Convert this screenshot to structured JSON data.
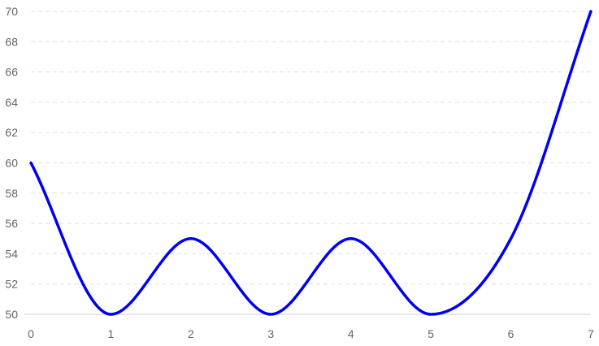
{
  "chart_data": {
    "type": "line",
    "x": [
      0,
      1,
      2,
      3,
      4,
      5,
      6,
      7
    ],
    "series": [
      {
        "values": [
          60,
          50,
          55,
          50,
          55,
          50,
          55,
          70
        ]
      }
    ],
    "xticks": [
      "0",
      "1",
      "2",
      "3",
      "4",
      "5",
      "6",
      "7"
    ],
    "yticks": [
      "50",
      "52",
      "54",
      "56",
      "58",
      "60",
      "62",
      "64",
      "66",
      "68",
      "70"
    ],
    "xlim": [
      0,
      7
    ],
    "ylim": [
      50,
      70
    ],
    "grid": "horizontal-dashed",
    "line_color": "#0000ee",
    "title": "",
    "xlabel": "",
    "ylabel": ""
  }
}
